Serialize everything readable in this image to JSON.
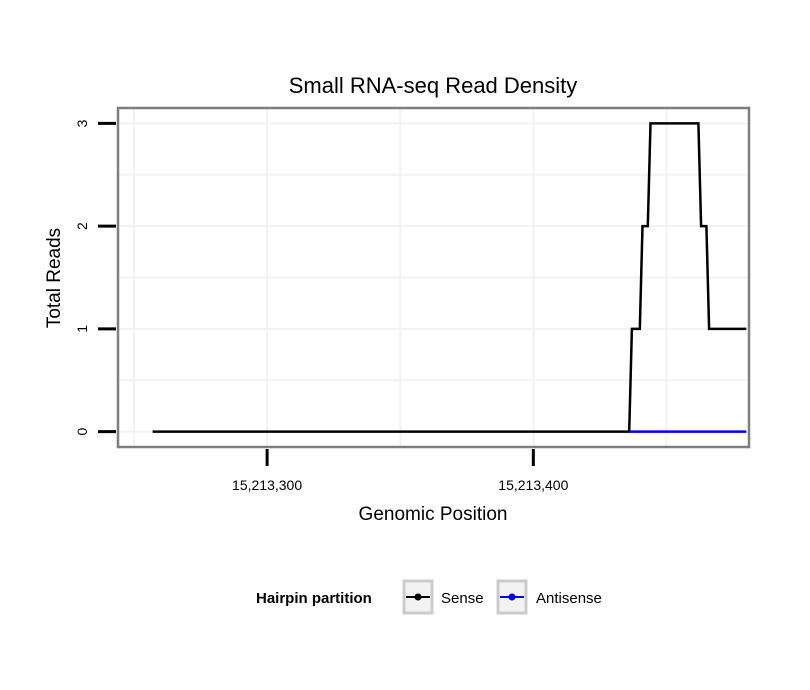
{
  "chart_data": {
    "type": "line",
    "title": "Small RNA-seq Read Density",
    "xlabel": "Genomic Position",
    "ylabel": "Total Reads",
    "xlim": [
      15213244,
      15213481
    ],
    "ylim": [
      -0.15,
      3.15
    ],
    "x_ticks": [
      15213300,
      15213400
    ],
    "x_tick_labels": [
      "15,213,300",
      "15,213,400"
    ],
    "y_ticks": [
      0,
      1,
      2,
      3
    ],
    "y_tick_labels": [
      "0",
      "1",
      "2",
      "3"
    ],
    "grid": true,
    "legend": {
      "title": "Hairpin partition",
      "position": "bottom"
    },
    "series": [
      {
        "name": "Sense",
        "color": "#000000",
        "points": [
          [
            15213257,
            0
          ],
          [
            15213436,
            0
          ],
          [
            15213437,
            1
          ],
          [
            15213440,
            1
          ],
          [
            15213441,
            2
          ],
          [
            15213443,
            2
          ],
          [
            15213444,
            3
          ],
          [
            15213462,
            3
          ],
          [
            15213463,
            2
          ],
          [
            15213465,
            2
          ],
          [
            15213466,
            1
          ],
          [
            15213480,
            1
          ]
        ]
      },
      {
        "name": "Antisense",
        "color": "#0000ff",
        "points": [
          [
            15213436,
            0
          ],
          [
            15213480,
            0
          ]
        ]
      }
    ]
  }
}
